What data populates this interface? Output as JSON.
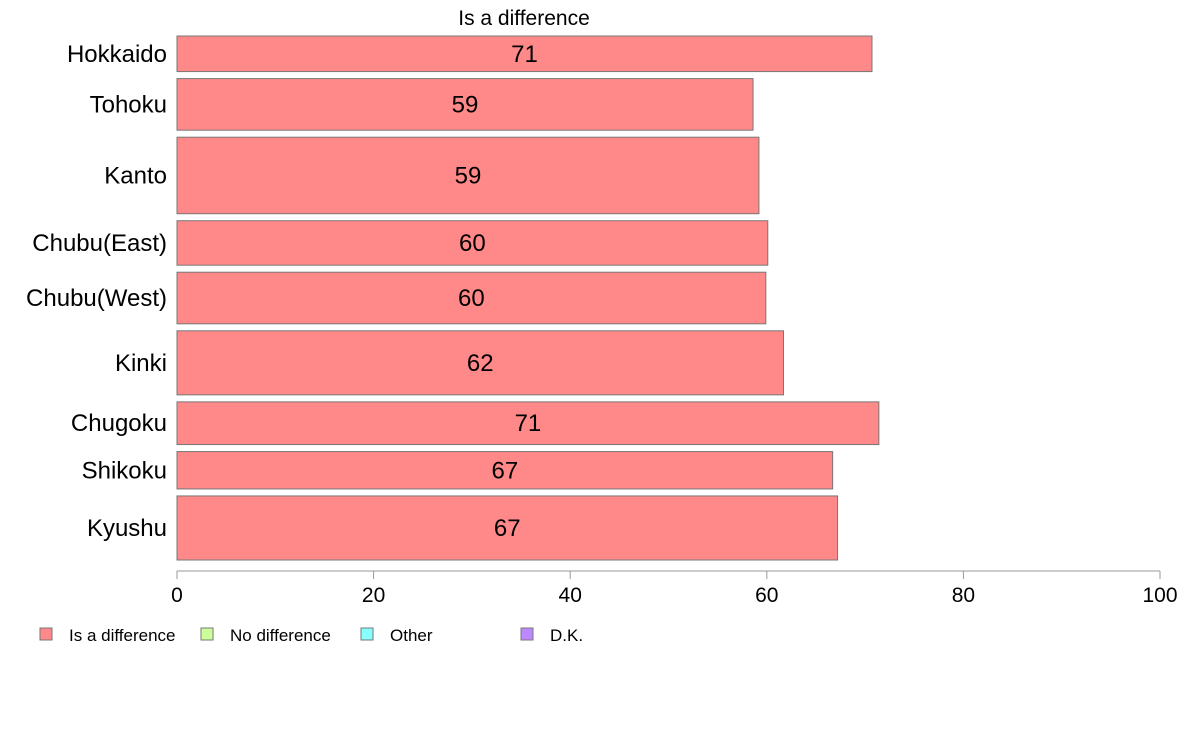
{
  "chart_data": {
    "type": "bar",
    "orientation": "horizontal",
    "title": "Is a difference",
    "xlabel": "",
    "ylabel": "",
    "xlim": [
      0,
      100
    ],
    "x_ticks": [
      0,
      20,
      40,
      60,
      80,
      100
    ],
    "categories": [
      "Hokkaido",
      "Tohoku",
      "Kanto",
      "Chubu(East)",
      "Chubu(West)",
      "Kinki",
      "Chugoku",
      "Shikoku",
      "Kyushu"
    ],
    "band_weights": [
      1.0,
      1.45,
      2.15,
      1.25,
      1.45,
      1.8,
      1.2,
      1.05,
      1.8
    ],
    "series": [
      {
        "name": "Is a difference",
        "color": "#ff8888",
        "values": [
          70.7,
          58.6,
          59.2,
          60.1,
          59.9,
          61.7,
          71.4,
          66.7,
          67.2
        ],
        "labels": [
          "71",
          "59",
          "59",
          "60",
          "60",
          "62",
          "71",
          "67",
          "67"
        ]
      }
    ],
    "legend": {
      "position": "bottom-left",
      "items": [
        {
          "label": "Is a difference",
          "color": "#ff8888"
        },
        {
          "label": "No difference",
          "color": "#ccff99"
        },
        {
          "label": "Other",
          "color": "#88ffff"
        },
        {
          "label": "D.K.",
          "color": "#bb88ff"
        }
      ]
    },
    "grid": false
  }
}
